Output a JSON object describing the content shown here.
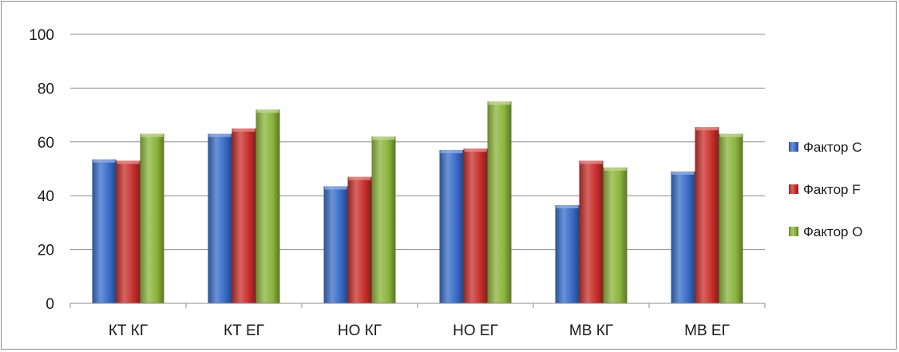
{
  "chart_data": {
    "type": "bar",
    "categories": [
      "КТ КГ",
      "КТ ЕГ",
      "НО КГ",
      "НО ЕГ",
      "МВ КГ",
      "МВ ЕГ"
    ],
    "series": [
      {
        "name": "Фактор C",
        "values": [
          53.5,
          63,
          43.5,
          57,
          36.5,
          49
        ],
        "color": "#3a6cc8"
      },
      {
        "name": "Фактор F",
        "values": [
          53,
          65,
          47,
          57.5,
          53,
          65.5
        ],
        "color": "#c8302c"
      },
      {
        "name": "Фактор O",
        "values": [
          63,
          72,
          62,
          75,
          50.5,
          63
        ],
        "color": "#8cb43c"
      }
    ],
    "title": "",
    "xlabel": "",
    "ylabel": "",
    "ylim": [
      0,
      100
    ],
    "yticks": [
      "0",
      "20",
      "40",
      "60",
      "80",
      "100"
    ],
    "grid": true,
    "legend_position": "right"
  }
}
